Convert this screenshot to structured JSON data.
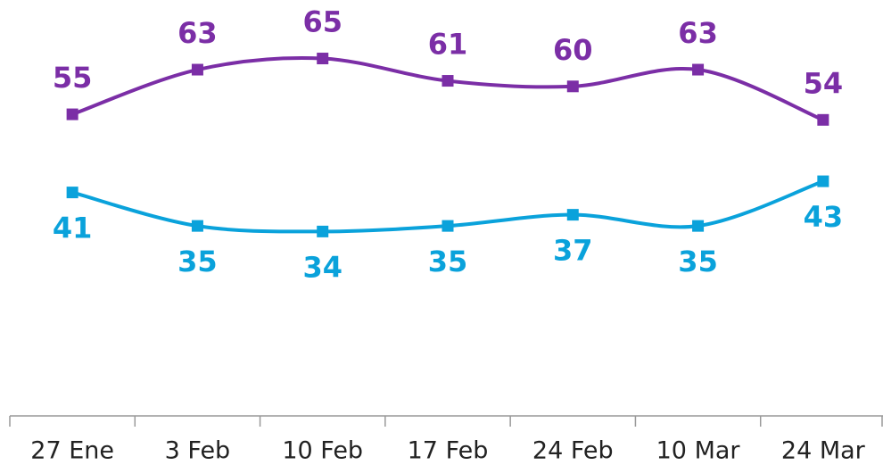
{
  "chart_data": {
    "type": "line",
    "categories": [
      "27 Ene",
      "3 Feb",
      "10 Feb",
      "17 Feb",
      "24 Feb",
      "10 Mar",
      "24 Mar"
    ],
    "series": [
      {
        "color": "#7b2ea6",
        "values": [
          55,
          63,
          65,
          61,
          60,
          63,
          54
        ]
      },
      {
        "color": "#0aa2db",
        "values": [
          41,
          35,
          34,
          35,
          37,
          35,
          43
        ]
      }
    ],
    "ylim": [
      0,
      75
    ]
  }
}
